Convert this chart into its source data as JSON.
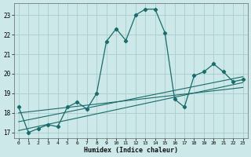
{
  "title": "",
  "xlabel": "Humidex (Indice chaleur)",
  "bg_color": "#cce8e8",
  "grid_color": "#aacccc",
  "line_color": "#1a6b6b",
  "xlim": [
    -0.5,
    23.5
  ],
  "ylim": [
    16.7,
    23.6
  ],
  "yticks": [
    17,
    18,
    19,
    20,
    21,
    22,
    23
  ],
  "xticks": [
    0,
    1,
    2,
    3,
    4,
    5,
    6,
    7,
    8,
    9,
    10,
    11,
    12,
    13,
    14,
    15,
    16,
    17,
    18,
    19,
    20,
    21,
    22,
    23
  ],
  "series": [
    {
      "x": [
        0,
        1,
        2,
        3,
        4,
        5,
        6,
        7,
        8,
        9,
        10,
        11,
        12,
        13,
        14,
        15,
        16,
        17,
        18,
        19,
        20,
        21,
        22,
        23
      ],
      "y": [
        18.3,
        17.0,
        17.2,
        17.4,
        17.3,
        18.3,
        18.55,
        18.2,
        19.0,
        21.65,
        22.3,
        21.7,
        23.0,
        23.3,
        23.3,
        22.1,
        18.7,
        18.3,
        19.9,
        20.1,
        20.5,
        20.1,
        19.6,
        19.7
      ]
    },
    {
      "x": [
        0,
        23
      ],
      "y": [
        17.1,
        19.55
      ]
    },
    {
      "x": [
        0,
        23
      ],
      "y": [
        17.55,
        19.85
      ]
    },
    {
      "x": [
        0,
        23
      ],
      "y": [
        18.0,
        19.3
      ]
    }
  ]
}
